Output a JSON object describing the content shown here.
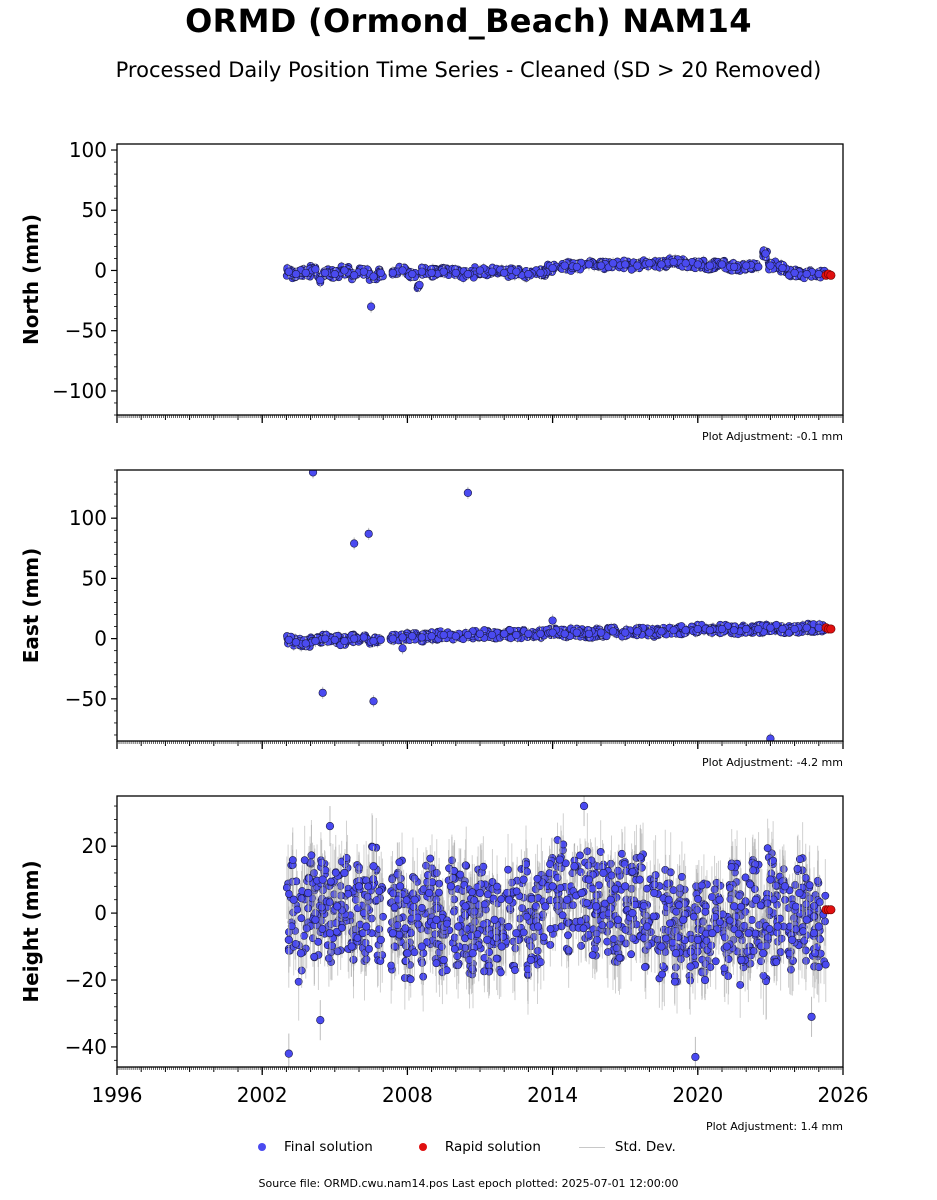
{
  "header": {
    "title": "ORMD (Ormond_Beach) NAM14",
    "subtitle": "Processed Daily Position Time Series - Cleaned (SD > 20 Removed)"
  },
  "legend": {
    "final_label": "Final solution",
    "rapid_label": "Rapid solution",
    "std_label": "Std. Dev."
  },
  "footer": {
    "source": "Source file: ORMD.cwu.nam14.pos  Last epoch plotted: 2025-07-01 12:00:00"
  },
  "colors": {
    "final": "#4a4af0",
    "final_edge": "#1a1a40",
    "rapid": "#e01010",
    "std": "#bdbdbd"
  },
  "chart_data": [
    {
      "type": "scatter",
      "ylabel": "North (mm)",
      "ylim": [
        -120,
        105
      ],
      "yticks": [
        100,
        50,
        0,
        -50,
        -100
      ],
      "xlim": [
        1996,
        2026
      ],
      "xticks": [
        1996,
        2002,
        2008,
        2014,
        2020,
        2026
      ],
      "show_xtick_labels": false,
      "adjustment": "Plot Adjustment: -0.1 mm",
      "series": [
        {
          "name": "Final solution",
          "x": [
            2003.1,
            2003.4,
            2003.8,
            2004.2,
            2004.6,
            2005.0,
            2005.4,
            2005.8,
            2006.2,
            2006.6,
            2006.9,
            2007.4,
            2007.8,
            2008.2,
            2008.6,
            2009.0,
            2009.5,
            2010.0,
            2010.5,
            2011.0,
            2011.5,
            2012.0,
            2012.5,
            2013.0,
            2013.5,
            2014.0,
            2014.5,
            2015.0,
            2015.5,
            2016.0,
            2016.5,
            2017.0,
            2017.5,
            2018.0,
            2018.5,
            2019.0,
            2019.5,
            2020.0,
            2020.5,
            2021.0,
            2021.5,
            2022.0,
            2022.5,
            2023.0,
            2023.5,
            2024.0,
            2024.5,
            2025.0,
            2006.5,
            2022.8,
            2008.5,
            2004.4
          ],
          "y": [
            -1,
            -3,
            -2,
            1,
            -2,
            -3,
            0,
            -4,
            -1,
            -5,
            -2,
            -2,
            0,
            -3,
            -1,
            -2,
            -1,
            -2,
            -3,
            0,
            -1,
            -2,
            -1,
            -3,
            -2,
            2,
            4,
            3,
            5,
            4,
            6,
            5,
            4,
            6,
            5,
            7,
            6,
            5,
            4,
            5,
            3,
            4,
            3,
            4,
            2,
            -2,
            -3,
            -3,
            -30,
            14,
            -12,
            -8
          ]
        },
        {
          "name": "Rapid solution",
          "x": [
            2025.3,
            2025.4,
            2025.5
          ],
          "y": [
            -4,
            -3,
            -4
          ]
        }
      ]
    },
    {
      "type": "scatter",
      "ylabel": "East (mm)",
      "ylim": [
        -85,
        140
      ],
      "yticks": [
        100,
        50,
        0,
        -50
      ],
      "xlim": [
        1996,
        2026
      ],
      "xticks": [
        1996,
        2002,
        2008,
        2014,
        2020,
        2026
      ],
      "show_xtick_labels": false,
      "adjustment": "Plot Adjustment: -4.2 mm",
      "series": [
        {
          "name": "Final solution",
          "x": [
            2003.1,
            2003.4,
            2003.8,
            2004.2,
            2004.6,
            2005.0,
            2005.4,
            2005.8,
            2006.2,
            2006.6,
            2006.9,
            2007.4,
            2007.8,
            2008.2,
            2008.6,
            2009.0,
            2009.5,
            2010.0,
            2010.5,
            2011.0,
            2011.5,
            2012.0,
            2012.5,
            2013.0,
            2013.5,
            2014.0,
            2014.5,
            2015.0,
            2015.5,
            2016.0,
            2016.5,
            2017.0,
            2017.5,
            2018.0,
            2018.5,
            2019.0,
            2019.5,
            2020.0,
            2020.5,
            2021.0,
            2021.5,
            2022.0,
            2022.5,
            2023.0,
            2023.5,
            2024.0,
            2024.5,
            2025.0,
            2004.1,
            2004.5,
            2005.8,
            2006.4,
            2006.6,
            2010.5,
            2023.0,
            2014.0,
            2007.8
          ],
          "y": [
            -1,
            -3,
            -4,
            -2,
            0,
            -1,
            -2,
            0,
            1,
            -2,
            -1,
            0,
            1,
            2,
            1,
            2,
            3,
            2,
            3,
            4,
            3,
            4,
            3,
            4,
            4,
            5,
            4,
            5,
            4,
            5,
            6,
            5,
            6,
            5,
            6,
            7,
            7,
            8,
            7,
            8,
            7,
            8,
            8,
            9,
            8,
            8,
            9,
            9,
            138,
            -45,
            79,
            87,
            -52,
            121,
            -83,
            15,
            -8
          ]
        },
        {
          "name": "Rapid solution",
          "x": [
            2025.3,
            2025.4,
            2025.5
          ],
          "y": [
            9,
            8,
            8
          ]
        }
      ]
    },
    {
      "type": "scatter",
      "ylabel": "Height (mm)",
      "ylim": [
        -46,
        35
      ],
      "yticks": [
        20,
        0,
        -20,
        -40
      ],
      "xlim": [
        1996,
        2026
      ],
      "xticks": [
        1996,
        2002,
        2008,
        2014,
        2020,
        2026
      ],
      "show_xtick_labels": true,
      "adjustment": "Plot Adjustment: 1.4 mm",
      "series": [
        {
          "name": "Final solution",
          "x": [
            2003.1,
            2003.3,
            2003.6,
            2003.9,
            2004.2,
            2004.5,
            2004.8,
            2005.1,
            2005.4,
            2005.7,
            2006.0,
            2006.3,
            2006.6,
            2006.9,
            2007.4,
            2007.7,
            2008.0,
            2008.3,
            2008.6,
            2008.9,
            2009.2,
            2009.5,
            2009.8,
            2010.1,
            2010.4,
            2010.7,
            2011.0,
            2011.3,
            2011.6,
            2011.9,
            2012.2,
            2012.5,
            2012.8,
            2013.1,
            2013.4,
            2013.7,
            2014.0,
            2014.3,
            2014.6,
            2014.9,
            2015.2,
            2015.5,
            2015.8,
            2016.1,
            2016.4,
            2016.7,
            2017.0,
            2017.3,
            2017.6,
            2017.9,
            2018.2,
            2018.5,
            2018.8,
            2019.1,
            2019.4,
            2019.7,
            2020.0,
            2020.3,
            2020.6,
            2020.9,
            2021.2,
            2021.5,
            2021.8,
            2022.1,
            2022.4,
            2022.7,
            2023.0,
            2023.3,
            2023.6,
            2023.9,
            2024.2,
            2024.5,
            2024.8,
            2025.0,
            2003.1,
            2004.8,
            2019.9,
            2015.3,
            2004.4,
            2024.7
          ],
          "y": [
            -8,
            4,
            -12,
            6,
            -2,
            10,
            -6,
            2,
            12,
            -10,
            8,
            -4,
            14,
            -8,
            -6,
            8,
            -12,
            4,
            -10,
            6,
            -2,
            -14,
            8,
            -4,
            2,
            -12,
            6,
            -8,
            -2,
            -10,
            4,
            -6,
            10,
            -14,
            -4,
            2,
            8,
            16,
            4,
            14,
            6,
            10,
            2,
            12,
            4,
            -2,
            8,
            0,
            10,
            -4,
            6,
            -10,
            4,
            -12,
            -2,
            -16,
            -8,
            -20,
            -6,
            4,
            -10,
            2,
            -14,
            -6,
            4,
            -12,
            10,
            -4,
            8,
            -8,
            6,
            -2,
            -6,
            -4,
            -42,
            26,
            -43,
            32,
            -32,
            -31
          ]
        },
        {
          "name": "Rapid solution",
          "x": [
            2025.3,
            2025.4,
            2025.5
          ],
          "y": [
            1,
            1,
            1
          ]
        }
      ]
    }
  ]
}
